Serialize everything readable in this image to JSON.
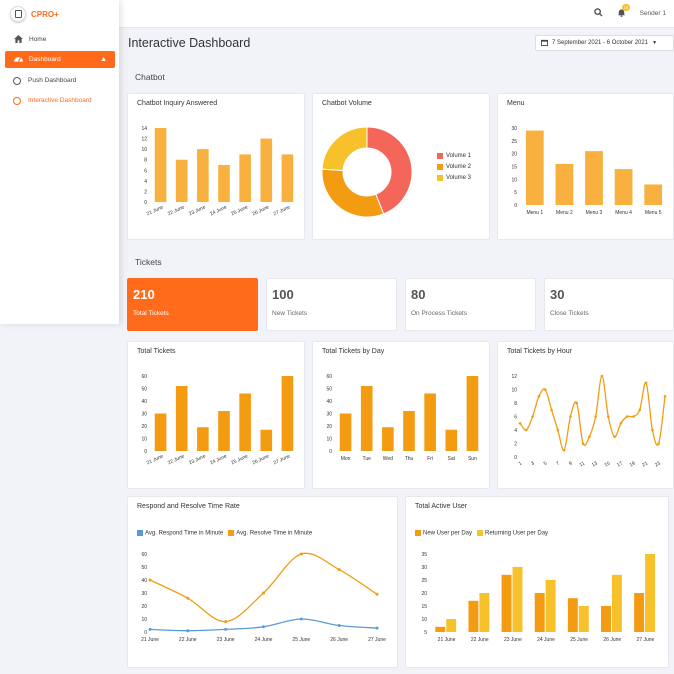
{
  "app": {
    "name": "CPRO+"
  },
  "colors": {
    "accent": "#ff6b1a",
    "bar": "#f8b13f",
    "bar_dark": "#f39c12",
    "gold": "#f7c12b",
    "red": "#f4665a",
    "blue": "#5b9bd5"
  },
  "sidebar": {
    "items": [
      {
        "label": "Home",
        "icon": "home-icon"
      },
      {
        "label": "Dashboard",
        "icon": "dashboard-icon"
      },
      {
        "label": "Push Dashboard",
        "icon": "circle-icon"
      },
      {
        "label": "Interactive Dashboard",
        "icon": "circle-icon"
      }
    ]
  },
  "header": {
    "user": "Sender 1",
    "notification_count": "15"
  },
  "page": {
    "title": "Interactive Dashboard",
    "date_range": "7 September 2021 - 6 October 2021"
  },
  "sections": {
    "chatbot": "Chatbot",
    "tickets": "Tickets"
  },
  "stats": [
    {
      "value": "210",
      "label": "Total Tickets"
    },
    {
      "value": "100",
      "label": "New Tickets"
    },
    {
      "value": "80",
      "label": "On Process Tickets"
    },
    {
      "value": "30",
      "label": "Close Tickets"
    }
  ],
  "cards": {
    "inquiry": "Chatbot Inquiry Answered",
    "volume": "Chatbot Volume",
    "menu": "Menu",
    "total_tickets": "Total Tickets",
    "tickets_day": "Total Tickets by Day",
    "tickets_hour": "Total Tickets by Hour",
    "respond": "Respond and Resolve Time Rate",
    "active_user": "Total Active User"
  },
  "chart_data": [
    {
      "id": "inquiry",
      "type": "bar",
      "categories": [
        "21 June",
        "22 June",
        "23 June",
        "24 June",
        "25 June",
        "26 June",
        "27 June"
      ],
      "values": [
        14,
        8,
        10,
        7,
        9,
        12,
        9
      ],
      "ylim": [
        0,
        14
      ],
      "yticks": [
        0,
        2,
        4,
        6,
        8,
        10,
        12,
        14
      ]
    },
    {
      "id": "volume",
      "type": "pie",
      "labels": [
        "Volume 1",
        "Volume 2",
        "Volume 3"
      ],
      "values": [
        44,
        32,
        24
      ],
      "colors": [
        "#f4665a",
        "#f39c12",
        "#f7c12b"
      ]
    },
    {
      "id": "menu",
      "type": "bar",
      "categories": [
        "Menu 1",
        "Menu 2",
        "Menu 3",
        "Menu 4",
        "Menu 5"
      ],
      "values": [
        29,
        16,
        21,
        14,
        8
      ],
      "ylim": [
        0,
        30
      ],
      "yticks": [
        0,
        5,
        10,
        15,
        20,
        25,
        30
      ]
    },
    {
      "id": "total_tickets",
      "type": "bar",
      "categories": [
        "21 June",
        "22 June",
        "23 June",
        "24 June",
        "25 June",
        "26 June",
        "27 June"
      ],
      "extra_bars": [
        30,
        52,
        19,
        32,
        46,
        17,
        60
      ],
      "values": [
        30,
        52,
        19,
        32,
        46,
        17,
        60
      ],
      "ylim": [
        0,
        60
      ],
      "yticks": [
        0,
        10,
        20,
        30,
        40,
        50,
        60
      ]
    },
    {
      "id": "tickets_day",
      "type": "bar",
      "categories": [
        "Mon",
        "Tue",
        "Wed",
        "Thu",
        "Fri",
        "Sat",
        "Sun"
      ],
      "values": [
        30,
        52,
        19,
        32,
        46,
        17,
        60
      ],
      "ylim": [
        0,
        60
      ],
      "yticks": [
        0,
        10,
        20,
        30,
        40,
        50,
        60
      ]
    },
    {
      "id": "tickets_hour",
      "type": "line",
      "x": [
        1,
        2,
        3,
        4,
        5,
        6,
        7,
        8,
        9,
        10,
        11,
        12,
        13,
        14,
        15,
        16,
        17,
        18,
        19,
        20,
        21,
        22,
        23,
        24
      ],
      "values": [
        5,
        4,
        6,
        9,
        10,
        7,
        4,
        1,
        6,
        8,
        2,
        3,
        6,
        12,
        6,
        3,
        5,
        6,
        6,
        7,
        11,
        4,
        2,
        9
      ],
      "xticks": [
        1,
        3,
        5,
        7,
        9,
        11,
        13,
        15,
        17,
        19,
        21,
        23
      ],
      "ylim": [
        0,
        12
      ],
      "yticks": [
        0,
        2,
        4,
        6,
        8,
        10,
        12
      ]
    },
    {
      "id": "respond",
      "type": "line",
      "categories": [
        "21 June",
        "22 June",
        "23 June",
        "24 June",
        "25 June",
        "26 June",
        "27 June"
      ],
      "series": [
        {
          "name": "Avg. Respond Time in Minute",
          "values": [
            2,
            1,
            2,
            4,
            10,
            5,
            3
          ]
        },
        {
          "name": "Avg. Resolve Time in Minute",
          "values": [
            40,
            26,
            8,
            30,
            60,
            48,
            29
          ]
        }
      ],
      "ylim": [
        0,
        60
      ],
      "yticks": [
        0,
        10,
        20,
        30,
        40,
        50,
        60
      ]
    },
    {
      "id": "active_user",
      "type": "bar",
      "categories": [
        "21 June",
        "22 June",
        "23 June",
        "24 June",
        "25 June",
        "26 June",
        "27 June"
      ],
      "series": [
        {
          "name": "New User per Day",
          "values": [
            7,
            17,
            27,
            20,
            18,
            15,
            20
          ]
        },
        {
          "name": "Returning User per Day",
          "values": [
            10,
            20,
            30,
            25,
            15,
            27,
            35
          ]
        }
      ],
      "ylim": [
        5,
        35
      ],
      "yticks": [
        5,
        10,
        15,
        20,
        25,
        30,
        35
      ]
    }
  ]
}
